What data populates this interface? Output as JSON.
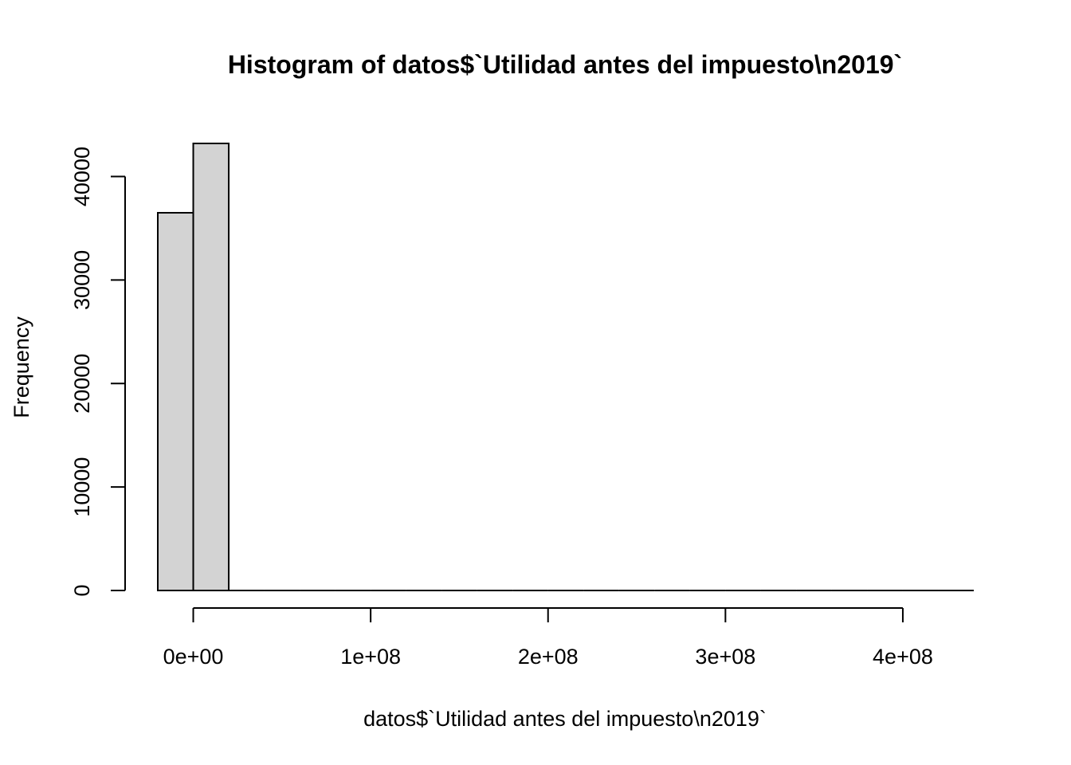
{
  "chart_data": {
    "type": "bar",
    "title": "Histogram of datos$`Utilidad antes del impuesto\\n2019`",
    "xlabel": "datos$`Utilidad antes del impuesto\\n2019`",
    "ylabel": "Frequency",
    "bins": [
      {
        "x0": -20000000,
        "x1": 0,
        "count": 36500
      },
      {
        "x0": 0,
        "x1": 20000000,
        "count": 43200
      },
      {
        "x0": 20000000,
        "x1": 40000000,
        "count": 0
      },
      {
        "x0": 40000000,
        "x1": 60000000,
        "count": 0
      },
      {
        "x0": 60000000,
        "x1": 80000000,
        "count": 0
      },
      {
        "x0": 80000000,
        "x1": 100000000,
        "count": 0
      },
      {
        "x0": 100000000,
        "x1": 120000000,
        "count": 0
      },
      {
        "x0": 120000000,
        "x1": 140000000,
        "count": 0
      },
      {
        "x0": 140000000,
        "x1": 160000000,
        "count": 0
      },
      {
        "x0": 160000000,
        "x1": 180000000,
        "count": 0
      },
      {
        "x0": 180000000,
        "x1": 200000000,
        "count": 0
      },
      {
        "x0": 200000000,
        "x1": 220000000,
        "count": 0
      },
      {
        "x0": 220000000,
        "x1": 240000000,
        "count": 0
      },
      {
        "x0": 240000000,
        "x1": 260000000,
        "count": 0
      },
      {
        "x0": 260000000,
        "x1": 280000000,
        "count": 0
      },
      {
        "x0": 280000000,
        "x1": 300000000,
        "count": 0
      },
      {
        "x0": 300000000,
        "x1": 320000000,
        "count": 0
      },
      {
        "x0": 320000000,
        "x1": 340000000,
        "count": 0
      },
      {
        "x0": 340000000,
        "x1": 360000000,
        "count": 0
      },
      {
        "x0": 360000000,
        "x1": 380000000,
        "count": 0
      },
      {
        "x0": 380000000,
        "x1": 400000000,
        "count": 0
      },
      {
        "x0": 400000000,
        "x1": 420000000,
        "count": 0
      },
      {
        "x0": 420000000,
        "x1": 440000000,
        "count": 0
      }
    ],
    "xticks": [
      {
        "value": 0,
        "label": "0e+00"
      },
      {
        "value": 100000000,
        "label": "1e+08"
      },
      {
        "value": 200000000,
        "label": "2e+08"
      },
      {
        "value": 300000000,
        "label": "3e+08"
      },
      {
        "value": 400000000,
        "label": "4e+08"
      }
    ],
    "yticks": [
      {
        "value": 0,
        "label": "0"
      },
      {
        "value": 10000,
        "label": "10000"
      },
      {
        "value": 20000,
        "label": "20000"
      },
      {
        "value": 30000,
        "label": "30000"
      },
      {
        "value": 40000,
        "label": "40000"
      }
    ],
    "xlim": [
      -20000000,
      440000000
    ],
    "ylim": [
      0,
      43200
    ],
    "grid": false,
    "legend": "none",
    "bar_fill": "#d3d3d3",
    "line_color": "#000000"
  }
}
